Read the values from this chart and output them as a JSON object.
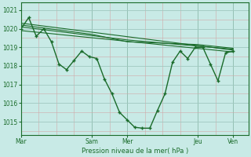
{
  "xlabel": "Pression niveau de la mer( hPa )",
  "background_color": "#c8eae6",
  "grid_color_major": "#a0c8c0",
  "grid_color_minor": "#d0a8a8",
  "line_color": "#1a6b2a",
  "ylim": [
    1014.3,
    1021.4
  ],
  "yticks": [
    1015,
    1016,
    1017,
    1018,
    1019,
    1020,
    1021
  ],
  "xtick_labels": [
    "Mar",
    "Sam",
    "Mer",
    "Jeu",
    "Ven"
  ],
  "xtick_positions": [
    0,
    56,
    84,
    140,
    168
  ],
  "xlim": [
    0,
    180
  ],
  "main_x": [
    0,
    6,
    12,
    18,
    24,
    30,
    36,
    42,
    48,
    54,
    60,
    66,
    72,
    78,
    84,
    90,
    96,
    102,
    108,
    114,
    120,
    126,
    132,
    138,
    144,
    150,
    156,
    162,
    168
  ],
  "main_y": [
    1020.0,
    1020.6,
    1019.6,
    1020.0,
    1019.3,
    1018.1,
    1017.8,
    1018.3,
    1018.8,
    1018.5,
    1018.4,
    1017.3,
    1016.5,
    1015.5,
    1015.1,
    1014.7,
    1014.65,
    1014.65,
    1015.6,
    1016.5,
    1018.2,
    1018.8,
    1018.4,
    1019.0,
    1019.0,
    1018.1,
    1017.2,
    1018.7,
    1018.8
  ],
  "fore_lines": [
    {
      "x": [
        0,
        168
      ],
      "y": [
        1020.3,
        1018.85
      ]
    },
    {
      "x": [
        0,
        168
      ],
      "y": [
        1019.9,
        1018.75
      ]
    },
    {
      "x": [
        0,
        84,
        168
      ],
      "y": [
        1020.1,
        1019.4,
        1018.9
      ]
    },
    {
      "x": [
        0,
        56,
        84,
        140,
        168
      ],
      "y": [
        1020.2,
        1019.7,
        1019.3,
        1019.15,
        1018.95
      ]
    }
  ]
}
